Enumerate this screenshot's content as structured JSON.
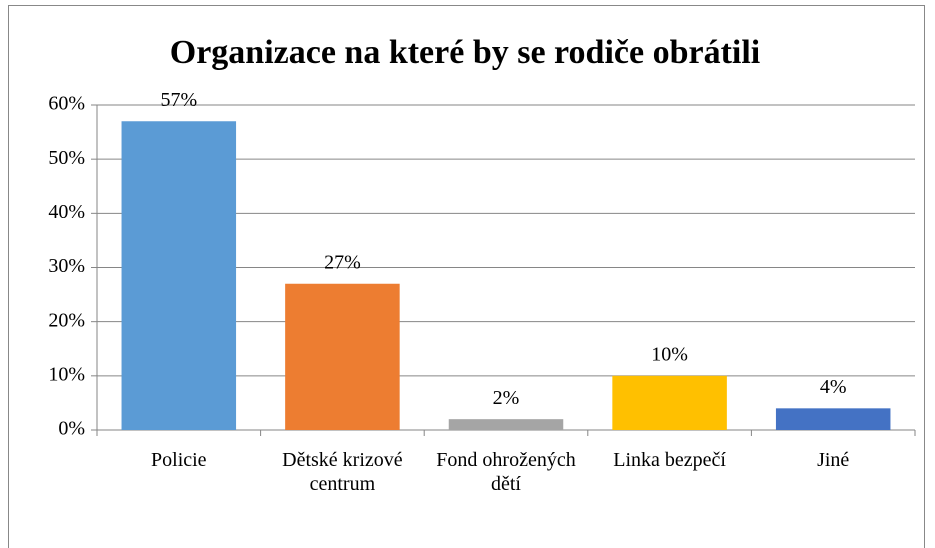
{
  "chart_data": {
    "type": "bar",
    "title": "Organizace na které by se rodiče obrátili",
    "categories": [
      "Policie",
      "Dětské krizové centrum",
      "Fond ohrožených dětí",
      "Linka bezpečí",
      "Jiné"
    ],
    "values": [
      57,
      27,
      2,
      10,
      4
    ],
    "value_labels": [
      "57%",
      "27%",
      "2%",
      "10%",
      "4%"
    ],
    "colors": [
      "#5b9bd5",
      "#ed7d31",
      "#a5a5a5",
      "#ffc000",
      "#4472c4"
    ],
    "ylim": [
      0,
      60
    ],
    "yticks": [
      {
        "value": 0,
        "label": "0%"
      },
      {
        "value": 10,
        "label": "10%"
      },
      {
        "value": 20,
        "label": "20%"
      },
      {
        "value": 30,
        "label": "30%"
      },
      {
        "value": 40,
        "label": "40%"
      },
      {
        "value": 50,
        "label": "50%"
      },
      {
        "value": 60,
        "label": "60%"
      }
    ],
    "grid": true
  }
}
